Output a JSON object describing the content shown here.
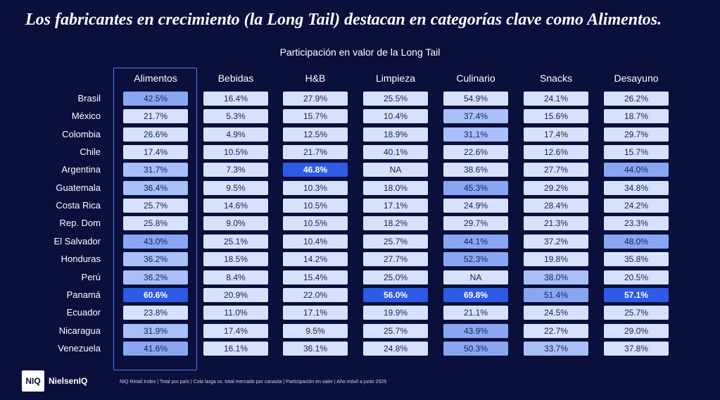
{
  "title": "Los fabricantes en crecimiento (la Long Tail) destacan en categorías clave como Alimentos.",
  "footer": "NIQ Retail Index | Total por país | Cola larga vs. total mercado por canasta | Participación en valor | Año móvil a junio 2025",
  "logo": {
    "mark": "NIQ",
    "name": "NielsenIQ"
  },
  "colors": {
    "background": "#0a0f3c",
    "cell_light": "#d6e2fb",
    "cell_medium": "#a8bff7",
    "cell_strong": "#8aa6f2",
    "cell_highlight": "#2d5be6",
    "highlight_border": "#4a7bf0"
  },
  "chart_data": {
    "type": "table",
    "title": "Participación en valor de la Long Tail",
    "columns": [
      "Alimentos",
      "Bebidas",
      "H&B",
      "Limpieza",
      "Culinario",
      "Snacks",
      "Desayuno"
    ],
    "rows": [
      "Brasil",
      "México",
      "Colombia",
      "Chile",
      "Argentina",
      "Guatemala",
      "Costa Rica",
      "Rep. Dom",
      "El Salvador",
      "Honduras",
      "Perú",
      "Panamá",
      "Ecuador",
      "Nicaragua",
      "Venezuela"
    ],
    "values": [
      [
        "42.5%",
        "16.4%",
        "27.9%",
        "25.5%",
        "54.9%",
        "24.1%",
        "26.2%"
      ],
      [
        "21.7%",
        "5.3%",
        "15.7%",
        "10.4%",
        "37.4%",
        "15.6%",
        "18.7%"
      ],
      [
        "26.6%",
        "4.9%",
        "12.5%",
        "18.9%",
        "31,1%",
        "17.4%",
        "29.7%"
      ],
      [
        "17.4%",
        "10.5%",
        "21.7%",
        "40.1%",
        "22.6%",
        "12.6%",
        "15.7%"
      ],
      [
        "31.7%",
        "7.3%",
        "46.8%",
        "NA",
        "38.6%",
        "27.7%",
        "44.0%"
      ],
      [
        "36.4%",
        "9.5%",
        "10.3%",
        "18.0%",
        "45.3%",
        "29.2%",
        "34.8%"
      ],
      [
        "25.7%",
        "14.6%",
        "10.5%",
        "17.1%",
        "24.9%",
        "28.4%",
        "24.2%"
      ],
      [
        "25.8%",
        "9.0%",
        "10.5%",
        "18.2%",
        "29.7%",
        "21.3%",
        "23.3%"
      ],
      [
        "43.0%",
        "25.1%",
        "10.4%",
        "25.7%",
        "44.1%",
        "37.2%",
        "48.0%"
      ],
      [
        "36.2%",
        "18.5%",
        "14.2%",
        "27.7%",
        "52.3%",
        "19.8%",
        "35.8%"
      ],
      [
        "36.2%",
        "8.4%",
        "15.4%",
        "25.0%",
        "NA",
        "38.0%",
        "20.5%"
      ],
      [
        "60.6%",
        "20.9%",
        "22.0%",
        "56.0%",
        "69.8%",
        "51.4%",
        "57.1%"
      ],
      [
        "23.8%",
        "11.0%",
        "17.1%",
        "19.9%",
        "21.1%",
        "24.5%",
        "25.7%"
      ],
      [
        "31.9%",
        "17.4%",
        "9.5%",
        "25.7%",
        "43.9%",
        "22.7%",
        "29.0%"
      ],
      [
        "41.6%",
        "16.1%",
        "36.1%",
        "24.8%",
        "50.3%",
        "33.7%",
        "37.8%"
      ]
    ],
    "levels": [
      [
        2,
        0,
        0,
        0,
        0,
        0,
        0
      ],
      [
        0,
        0,
        0,
        0,
        1,
        0,
        0
      ],
      [
        0,
        0,
        0,
        0,
        1,
        0,
        0
      ],
      [
        0,
        0,
        0,
        0,
        0,
        0,
        0
      ],
      [
        1,
        0,
        3,
        0,
        0,
        0,
        2
      ],
      [
        1,
        0,
        0,
        0,
        2,
        0,
        0
      ],
      [
        0,
        0,
        0,
        0,
        0,
        0,
        0
      ],
      [
        0,
        0,
        0,
        0,
        0,
        0,
        0
      ],
      [
        2,
        0,
        0,
        0,
        2,
        0,
        2
      ],
      [
        1,
        0,
        0,
        0,
        2,
        0,
        0
      ],
      [
        1,
        0,
        0,
        0,
        0,
        1,
        0
      ],
      [
        3,
        0,
        0,
        3,
        3,
        2,
        3
      ],
      [
        0,
        0,
        0,
        0,
        0,
        0,
        0
      ],
      [
        1,
        0,
        0,
        0,
        2,
        0,
        0
      ],
      [
        2,
        0,
        0,
        0,
        2,
        1,
        0
      ]
    ],
    "highlighted_column": "Alimentos"
  }
}
